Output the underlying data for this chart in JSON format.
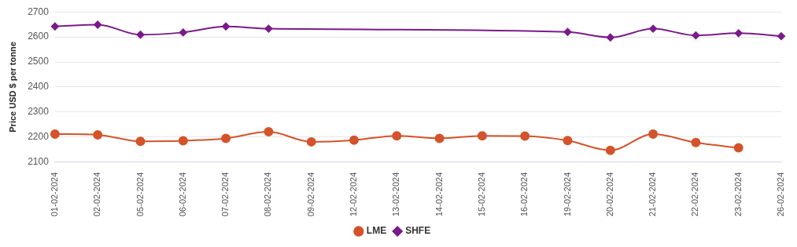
{
  "chart_data": {
    "type": "line",
    "ylabel": "Price USD $ per tonne",
    "categories": [
      "01-02-2024",
      "02-02-2024",
      "05-02-2024",
      "06-02-2024",
      "07-02-2024",
      "08-02-2024",
      "09-02-2024",
      "12-02-2024",
      "13-02-2024",
      "14-02-2024",
      "15-02-2024",
      "16-02-2024",
      "19-02-2024",
      "20-02-2024",
      "21-02-2024",
      "22-02-2024",
      "23-02-2024",
      "26-02-2024"
    ],
    "series": [
      {
        "name": "LME",
        "color": "#d4532a",
        "marker": "circle",
        "values": [
          2212,
          2209,
          2183,
          2185,
          2195,
          2221,
          2181,
          2188,
          2205,
          2195,
          2205,
          2204,
          2186,
          2147,
          2212,
          2178,
          2157,
          null
        ]
      },
      {
        "name": "SHFE",
        "color": "#7b1a8a",
        "marker": "diamond",
        "values": [
          2642,
          2649,
          2609,
          2618,
          2642,
          2633,
          null,
          null,
          null,
          null,
          null,
          null,
          2620,
          2598,
          2633,
          2606,
          2615,
          2603
        ]
      }
    ],
    "ylim": [
      2100,
      2700
    ],
    "yticks": [
      2100,
      2200,
      2300,
      2400,
      2500,
      2600,
      2700
    ],
    "grid": "y",
    "legend": "bottom"
  }
}
